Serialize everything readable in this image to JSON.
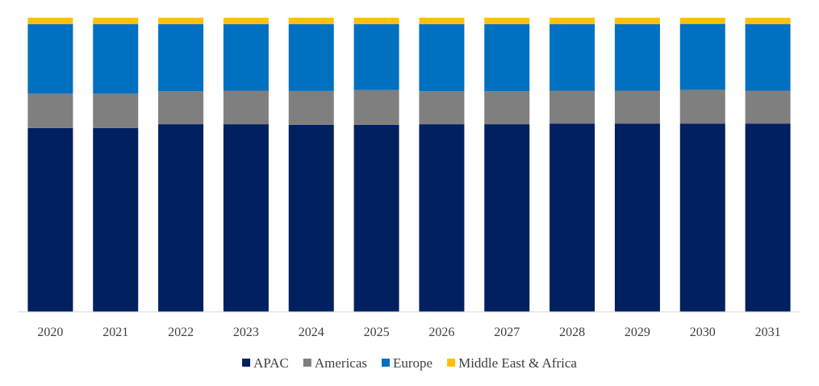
{
  "chart_data": {
    "type": "bar",
    "stacked": true,
    "percent_stacked": true,
    "title": "",
    "xlabel": "",
    "ylabel": "",
    "ylim": [
      0,
      100
    ],
    "grid": false,
    "legend_position": "bottom",
    "categories": [
      "2020",
      "2021",
      "2022",
      "2023",
      "2024",
      "2025",
      "2026",
      "2027",
      "2028",
      "2029",
      "2030",
      "2031"
    ],
    "series": [
      {
        "name": "APAC",
        "color": "#002060",
        "values": [
          62.5,
          62.5,
          63.8,
          63.8,
          63.6,
          63.6,
          63.8,
          63.8,
          64.0,
          64.0,
          64.0,
          64.0
        ]
      },
      {
        "name": "Americas",
        "color": "#7f7f7f",
        "values": [
          11.7,
          11.7,
          11.2,
          11.4,
          11.5,
          11.8,
          11.2,
          11.2,
          11.2,
          11.2,
          11.5,
          11.2
        ]
      },
      {
        "name": "Europe",
        "color": "#0070c0",
        "values": [
          23.6,
          23.6,
          22.8,
          22.6,
          22.7,
          22.4,
          22.8,
          22.8,
          22.6,
          22.6,
          22.4,
          22.6
        ]
      },
      {
        "name": "Middle East & Africa",
        "color": "#ffc000",
        "values": [
          2.2,
          2.2,
          2.2,
          2.2,
          2.2,
          2.2,
          2.2,
          2.2,
          2.2,
          2.2,
          2.1,
          2.2
        ]
      }
    ]
  }
}
